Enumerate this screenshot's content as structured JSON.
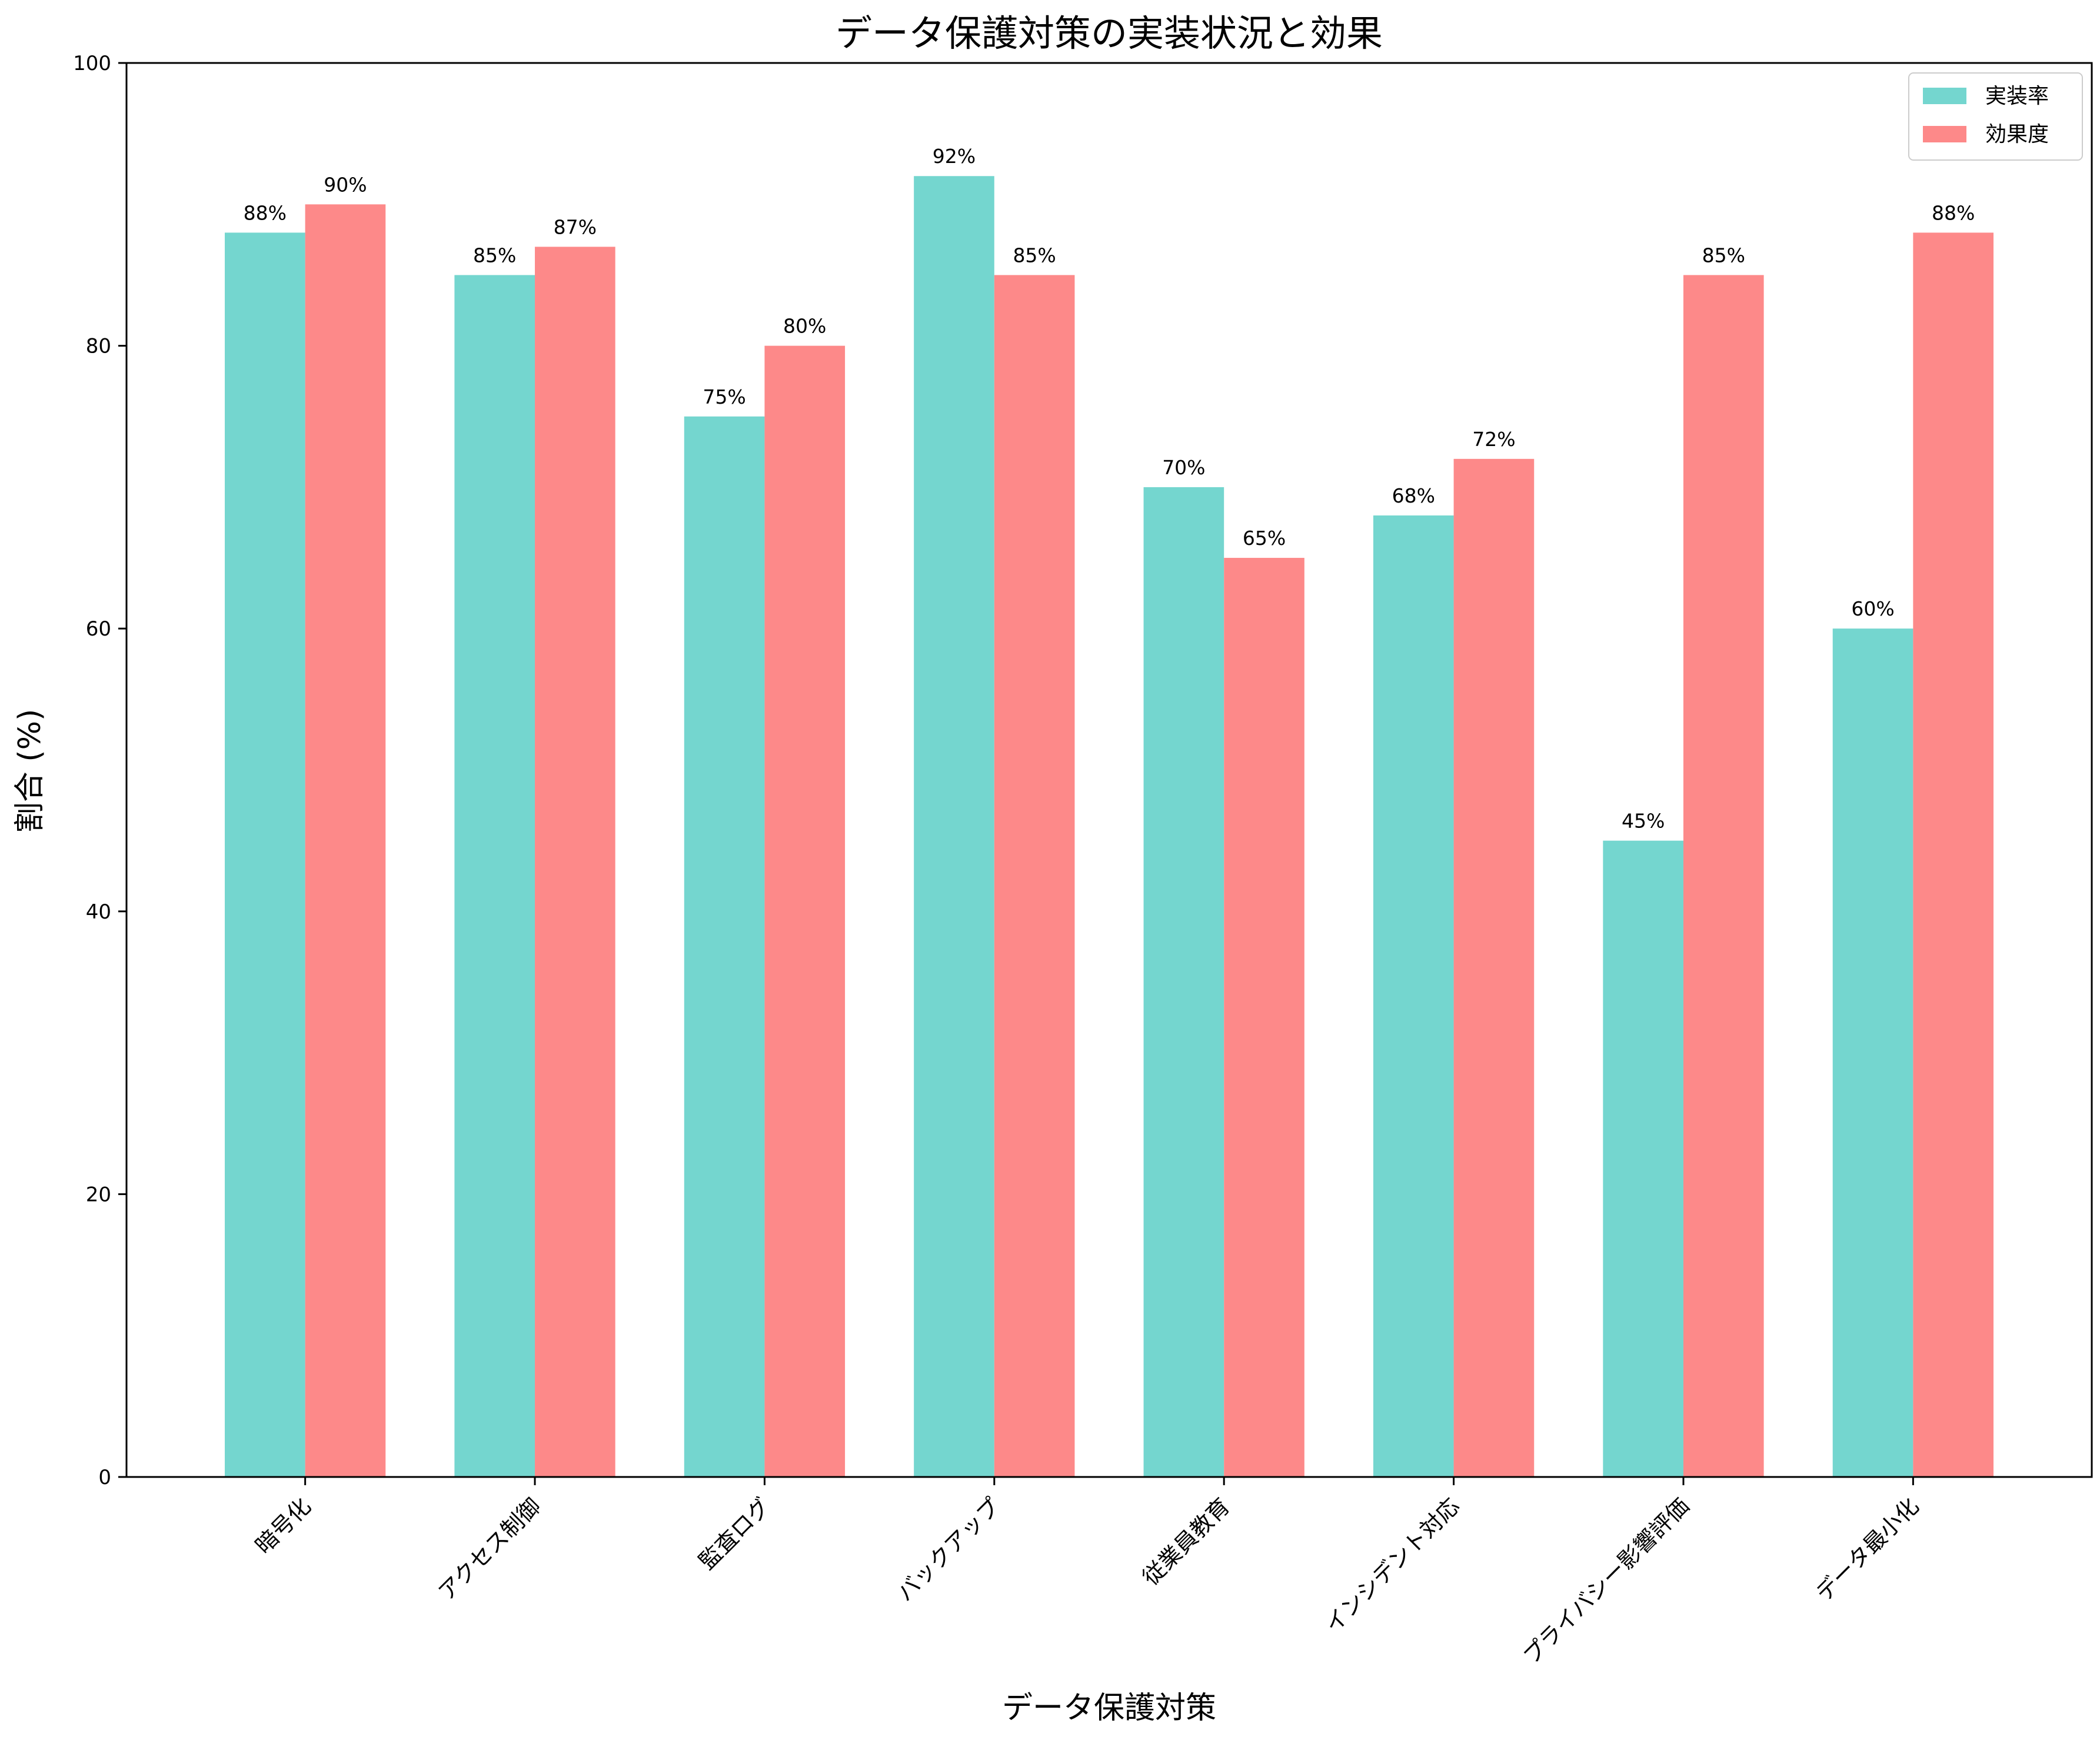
{
  "chart_data": {
    "type": "bar",
    "title": "データ保護対策の実装状況と効果",
    "xlabel": "データ保護対策",
    "ylabel": "割合 (%)",
    "ylim": [
      0,
      100
    ],
    "yticks": [
      0,
      20,
      40,
      60,
      80,
      100
    ],
    "grid": false,
    "legend_position": "top-right",
    "categories": [
      "暗号化",
      "アクセス制御",
      "監査ログ",
      "バックアップ",
      "従業員教育",
      "インシデント対応",
      "プライバシー影響評価",
      "データ最小化"
    ],
    "series": [
      {
        "name": "実装率",
        "color": "#74d6cf",
        "values": [
          88,
          85,
          75,
          92,
          70,
          68,
          45,
          60
        ]
      },
      {
        "name": "効果度",
        "color": "#fd8989",
        "values": [
          90,
          87,
          80,
          85,
          65,
          72,
          85,
          88
        ]
      }
    ],
    "value_suffix": "%"
  }
}
